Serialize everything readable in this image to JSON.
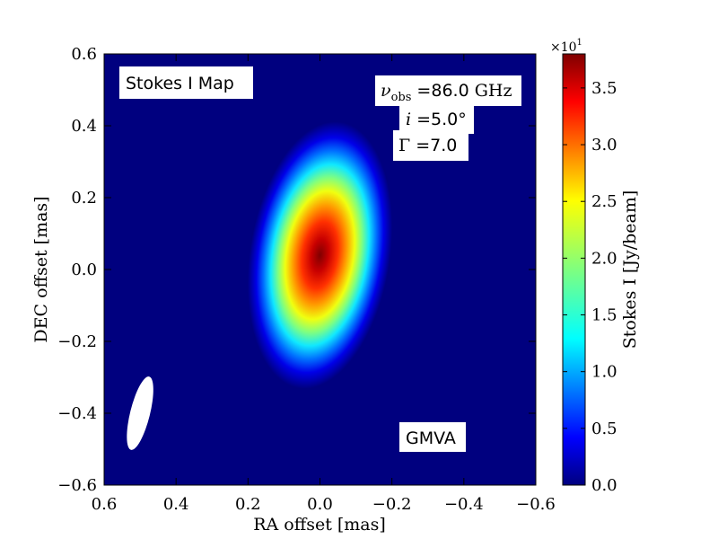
{
  "chart_data": {
    "type": "heatmap",
    "xlabel": "RA offset [mas]",
    "ylabel": "DEC offset [mas]",
    "xlim": [
      0.6,
      -0.6
    ],
    "ylim": [
      -0.6,
      0.6
    ],
    "x_ticks": [
      "0.6",
      "0.4",
      "0.2",
      "0.0",
      "−0.2",
      "−0.4",
      "−0.6"
    ],
    "y_ticks": [
      "−0.6",
      "−0.4",
      "−0.2",
      "0.0",
      "0.2",
      "0.4",
      "0.6"
    ],
    "colormap": "jet",
    "colorbar": {
      "label": "Stokes I [Jy/beam]",
      "multiplier": "×10",
      "multiplier_exp": "1",
      "range": [
        0.0,
        3.8
      ],
      "ticks": [
        "0.0",
        "0.5",
        "1.0",
        "1.5",
        "2.0",
        "2.5",
        "3.0",
        "3.5"
      ]
    },
    "source": {
      "peak_x": 0.0,
      "peak_y": 0.04,
      "peak_value": 3.75
    },
    "beam": {
      "center_x": 0.5,
      "center_y": -0.4,
      "color": "#ffffff"
    },
    "annotations": {
      "map_title": "Stokes I Map",
      "nu_symbol": "ν",
      "nu_sub": "obs",
      "nu_value": " =86.0",
      "nu_unit": " GHz",
      "incl_symbol": "i",
      "incl_value": " =5.0°",
      "gamma_symbol": "Γ",
      "gamma_value": " =7.0",
      "array": "GMVA"
    },
    "background_color": "#00007f"
  }
}
